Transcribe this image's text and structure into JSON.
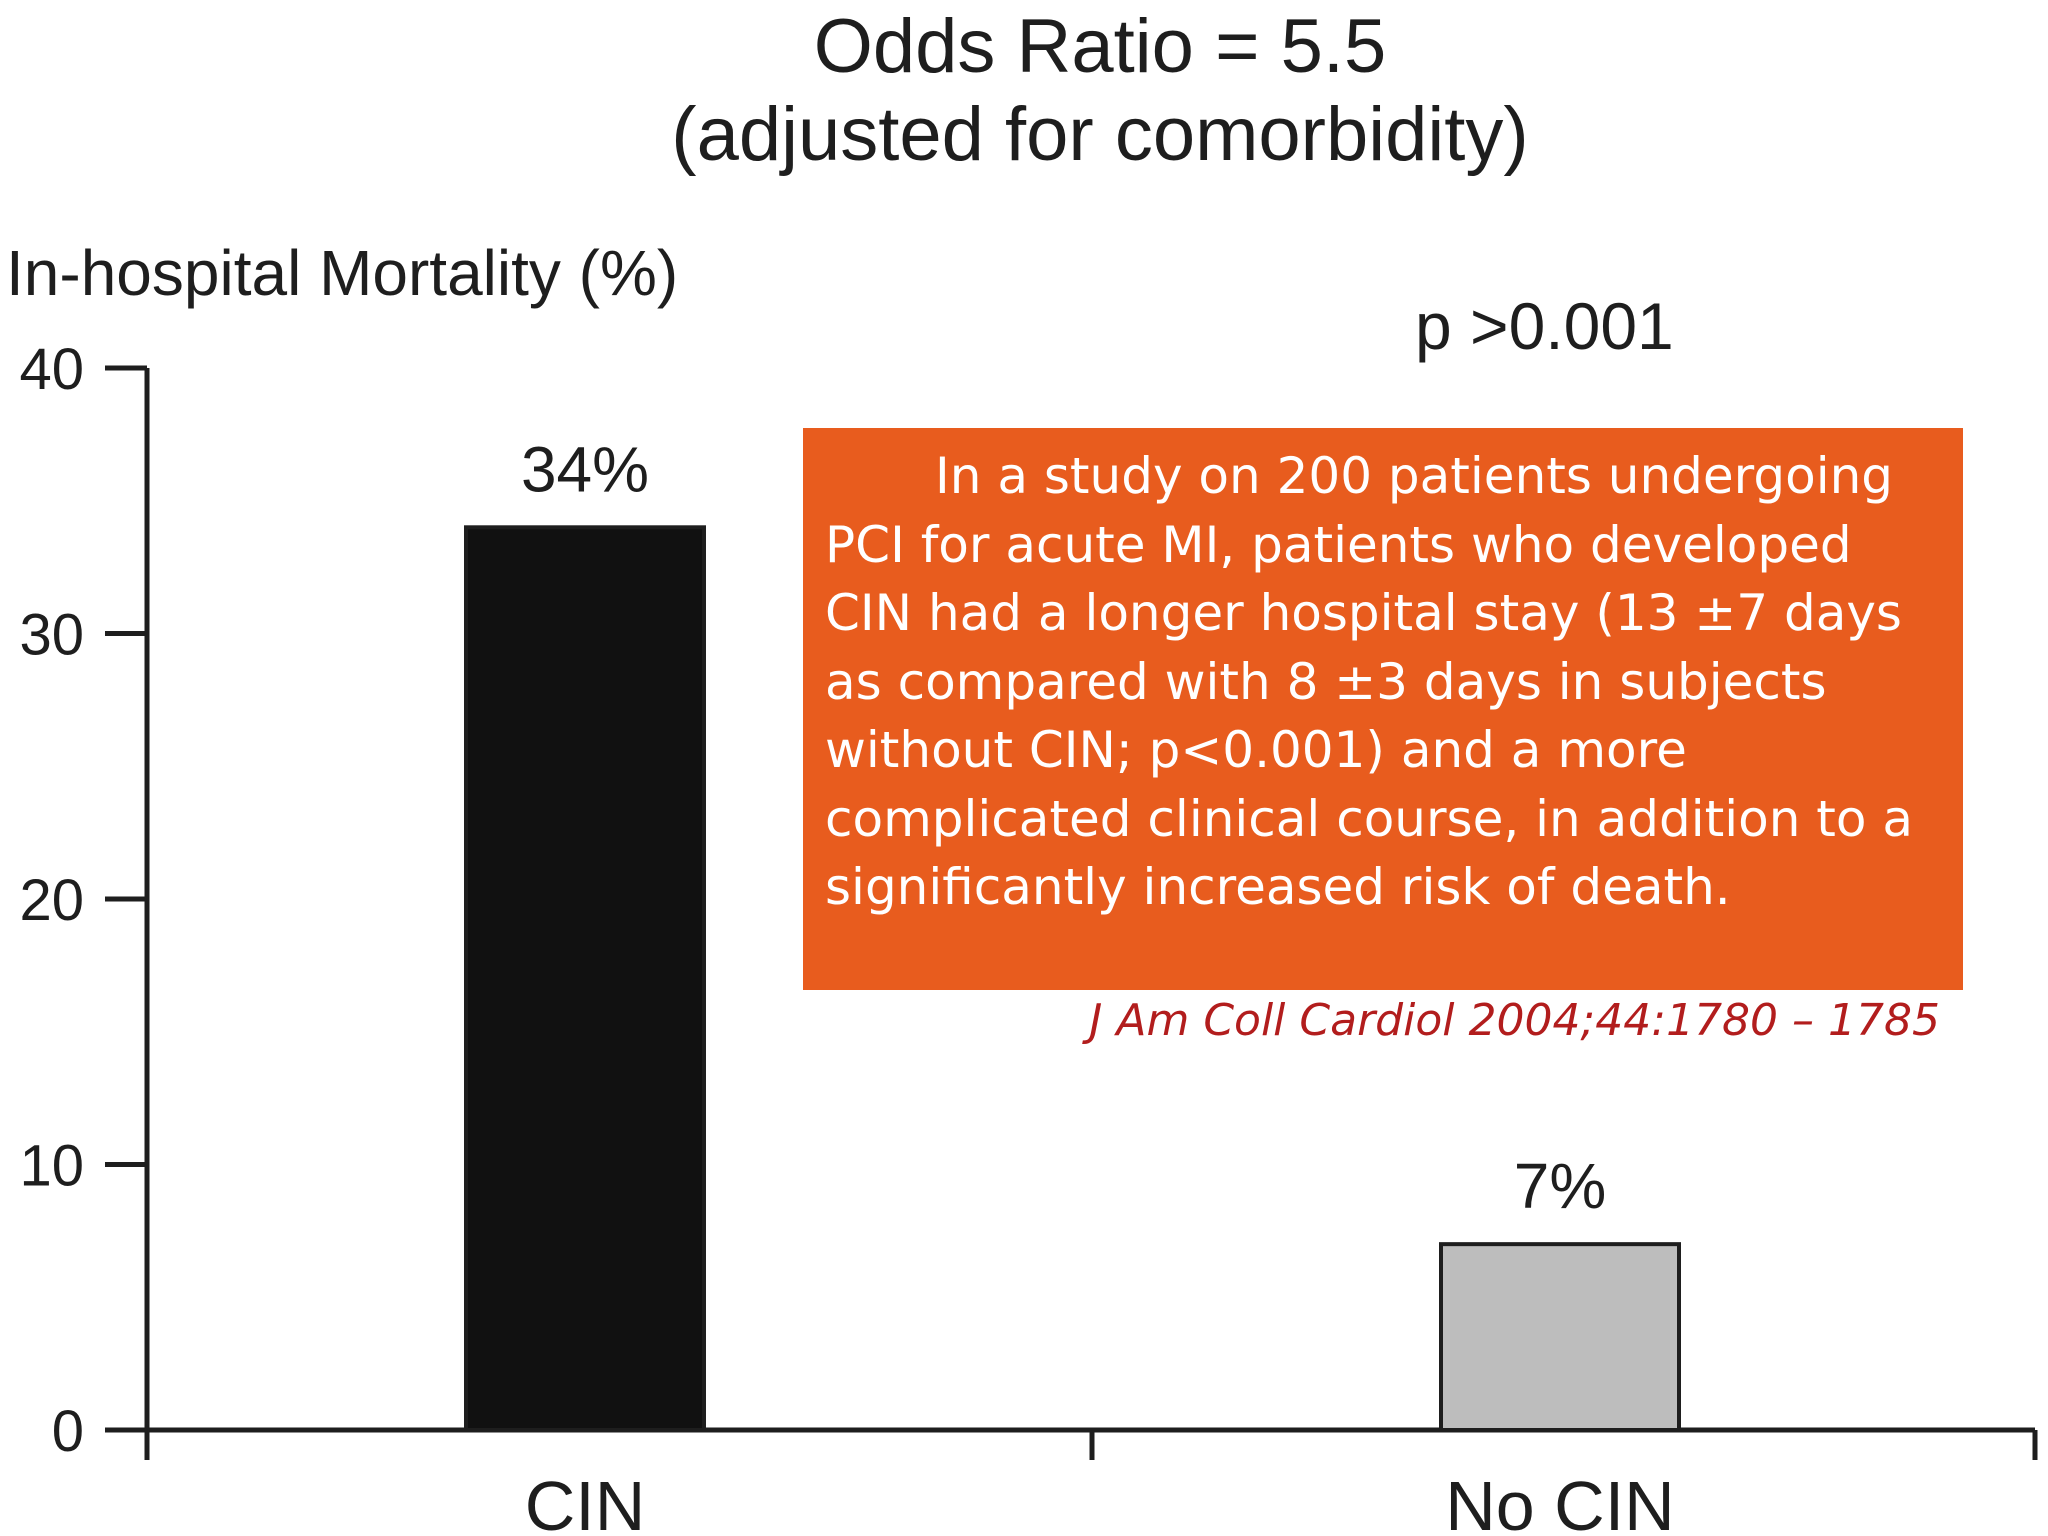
{
  "chart_data": {
    "type": "bar",
    "title": "Odds Ratio = 5.5",
    "subtitle": "(adjusted for comorbidity)",
    "ylabel": "In-hospital Mortality (%)",
    "xlabel": "",
    "categories": [
      "CIN",
      "No CIN"
    ],
    "values": [
      34,
      7
    ],
    "value_labels": [
      "34%",
      "7%"
    ],
    "ylim": [
      0,
      40
    ],
    "yticks": [
      0,
      10,
      20,
      30,
      40
    ],
    "annotation": "p >0.001",
    "grid": false,
    "bar_colors": [
      "#111111",
      "#bdbdbd"
    ]
  },
  "callout": {
    "text": "In a study on 200 patients undergoing PCI for acute MI, patients who developed CIN had a longer hospital stay (13 ±7 days as compared with 8 ±3 days in subjects without CIN; p<0.001) and a more complicated clinical course, in addition to a significantly increased risk of death.",
    "citation": "J Am Coll Cardiol 2004;44:1780 – 1785",
    "background_color": "#e85c1e",
    "citation_color": "#b21d1d"
  }
}
